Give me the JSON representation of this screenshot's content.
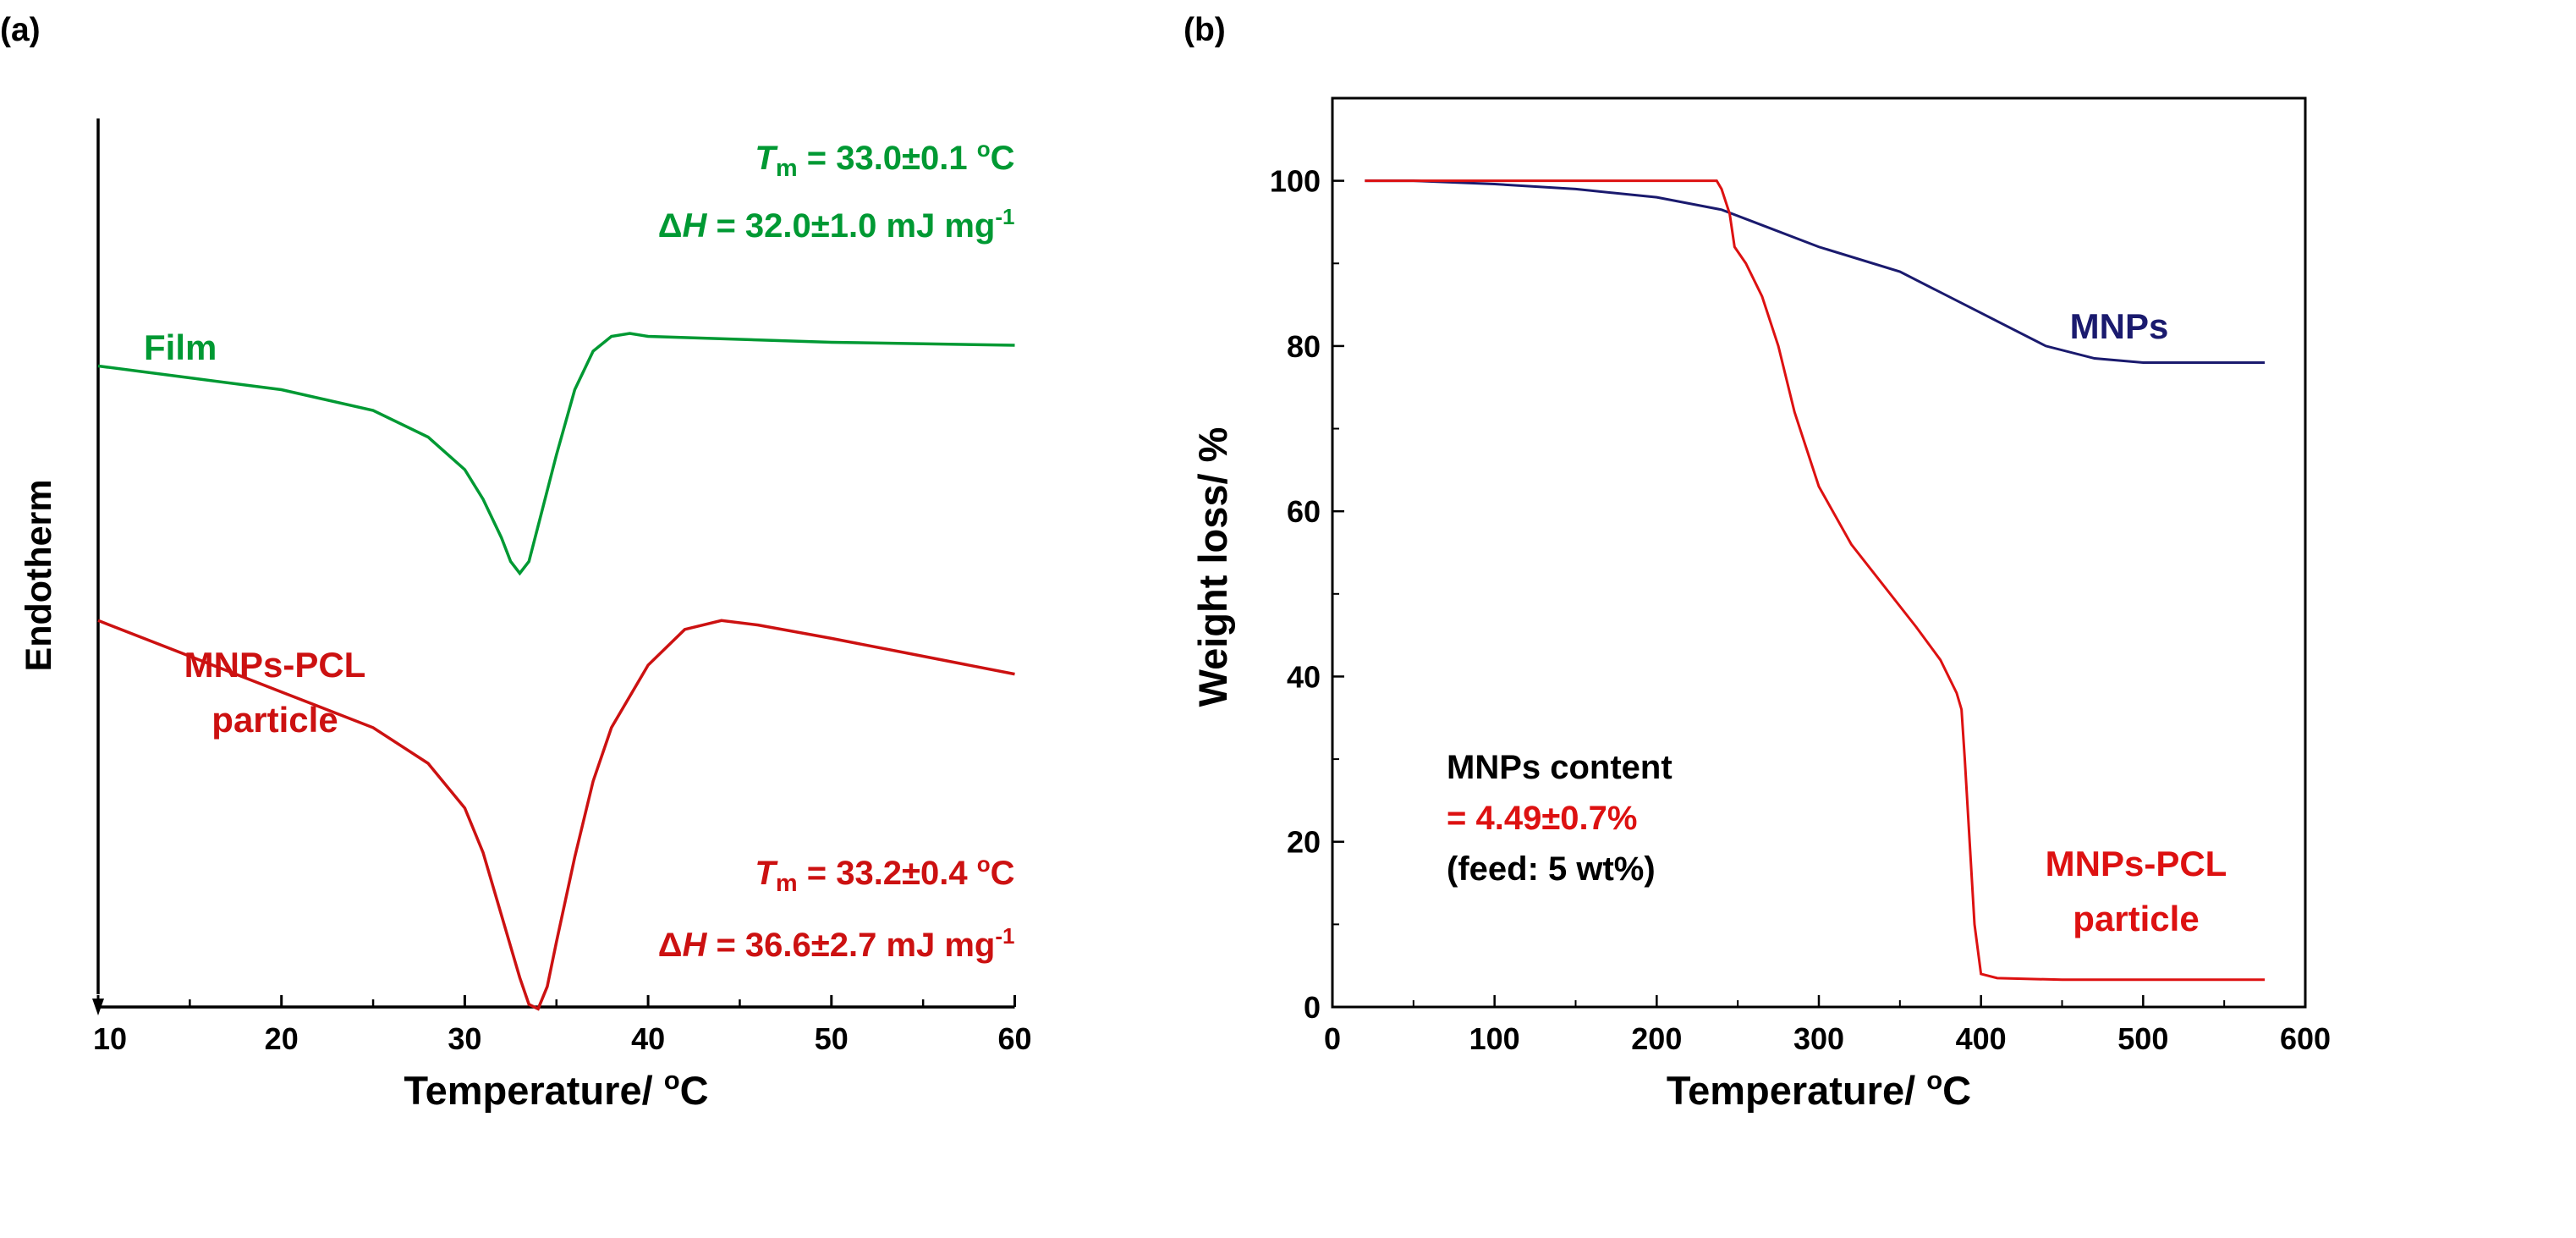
{
  "chart_data": [
    {
      "type": "line",
      "panel_label": "(a)",
      "xlabel_main": "Temperature/ ",
      "xlabel_sup": "o",
      "xlabel_unit": "C",
      "ylabel": "Endotherm",
      "xlim": [
        10,
        60
      ],
      "xticks": [
        10,
        20,
        30,
        40,
        50,
        60
      ],
      "y_axis": "relative heat flow (no ticks, arrow pointing down = endotherm)",
      "series": [
        {
          "name": "Film",
          "color": "#009933",
          "x": [
            10,
            15,
            20,
            25,
            28,
            30,
            31,
            32,
            32.5,
            33,
            33.5,
            34,
            35,
            36,
            37,
            38,
            39,
            40,
            45,
            50,
            55,
            60
          ],
          "y": [
            0.9,
            0.86,
            0.82,
            0.75,
            0.66,
            0.55,
            0.45,
            0.32,
            0.24,
            0.2,
            0.24,
            0.36,
            0.6,
            0.82,
            0.95,
            1.0,
            1.01,
            1.0,
            0.99,
            0.98,
            0.975,
            0.97
          ]
        },
        {
          "name": "MNPs-PCL particle",
          "color": "#cc1111",
          "x": [
            10,
            15,
            20,
            25,
            28,
            30,
            31,
            32,
            33,
            33.5,
            34,
            34.5,
            35,
            36,
            37,
            38,
            40,
            42,
            44,
            46,
            50,
            55,
            60
          ],
          "y": [
            0.88,
            0.8,
            0.72,
            0.64,
            0.56,
            0.46,
            0.36,
            0.22,
            0.08,
            0.02,
            0.01,
            0.06,
            0.16,
            0.35,
            0.52,
            0.64,
            0.78,
            0.86,
            0.88,
            0.87,
            0.84,
            0.8,
            0.76
          ]
        }
      ],
      "annotations": {
        "film": {
          "label": "Film",
          "tm_symbol": "T",
          "tm_sub": "m",
          "tm_value": " = 33.0±0.1 ",
          "tm_sup": "o",
          "tm_unit": "C",
          "dh_symbol": "Δ",
          "dh_italic": "H",
          "dh_value": " = 32.0±1.0 mJ mg",
          "dh_sup": "-1"
        },
        "particle": {
          "label_line1": "MNPs-PCL",
          "label_line2": "particle",
          "tm_symbol": "T",
          "tm_sub": "m",
          "tm_value": " = 33.2±0.4 ",
          "tm_sup": "o",
          "tm_unit": "C",
          "dh_symbol": "Δ",
          "dh_italic": "H",
          "dh_value": " = 36.6±2.7 mJ mg",
          "dh_sup": "-1"
        }
      }
    },
    {
      "type": "line",
      "panel_label": "(b)",
      "xlabel_main": "Temperature/ ",
      "xlabel_sup": "o",
      "xlabel_unit": "C",
      "ylabel": "Weight loss/ %",
      "xlim": [
        0,
        600
      ],
      "ylim": [
        0,
        110
      ],
      "xticks": [
        0,
        100,
        200,
        300,
        400,
        500,
        600
      ],
      "yticks": [
        0,
        20,
        40,
        60,
        80,
        100
      ],
      "series": [
        {
          "name": "MNPs",
          "color": "#1a1a6e",
          "x": [
            20,
            50,
            100,
            150,
            200,
            240,
            260,
            300,
            350,
            400,
            440,
            470,
            500,
            575
          ],
          "y": [
            100,
            100,
            99.6,
            99,
            98,
            96.5,
            95,
            92,
            89,
            84,
            80,
            78.5,
            78,
            78
          ]
        },
        {
          "name": "MNPs-PCL particle",
          "color": "#dd1111",
          "x": [
            20,
            100,
            200,
            237,
            240,
            245,
            248,
            255,
            265,
            275,
            285,
            300,
            320,
            340,
            360,
            375,
            385,
            388,
            390,
            393,
            396,
            400,
            410,
            450,
            500,
            575
          ],
          "y": [
            100,
            100,
            100,
            100,
            99,
            96,
            92,
            90,
            86,
            80,
            72,
            63,
            56,
            51,
            46,
            42,
            38,
            36,
            30,
            20,
            10,
            4,
            3.5,
            3.3,
            3.3,
            3.3
          ]
        }
      ],
      "annotations": {
        "mnps_label": "MNPs",
        "particle_line1": "MNPs-PCL",
        "particle_line2": "particle",
        "content_title": "MNPs content",
        "content_value": "= 4.49±0.7%",
        "content_feed": "(feed: 5 wt%)"
      }
    }
  ]
}
